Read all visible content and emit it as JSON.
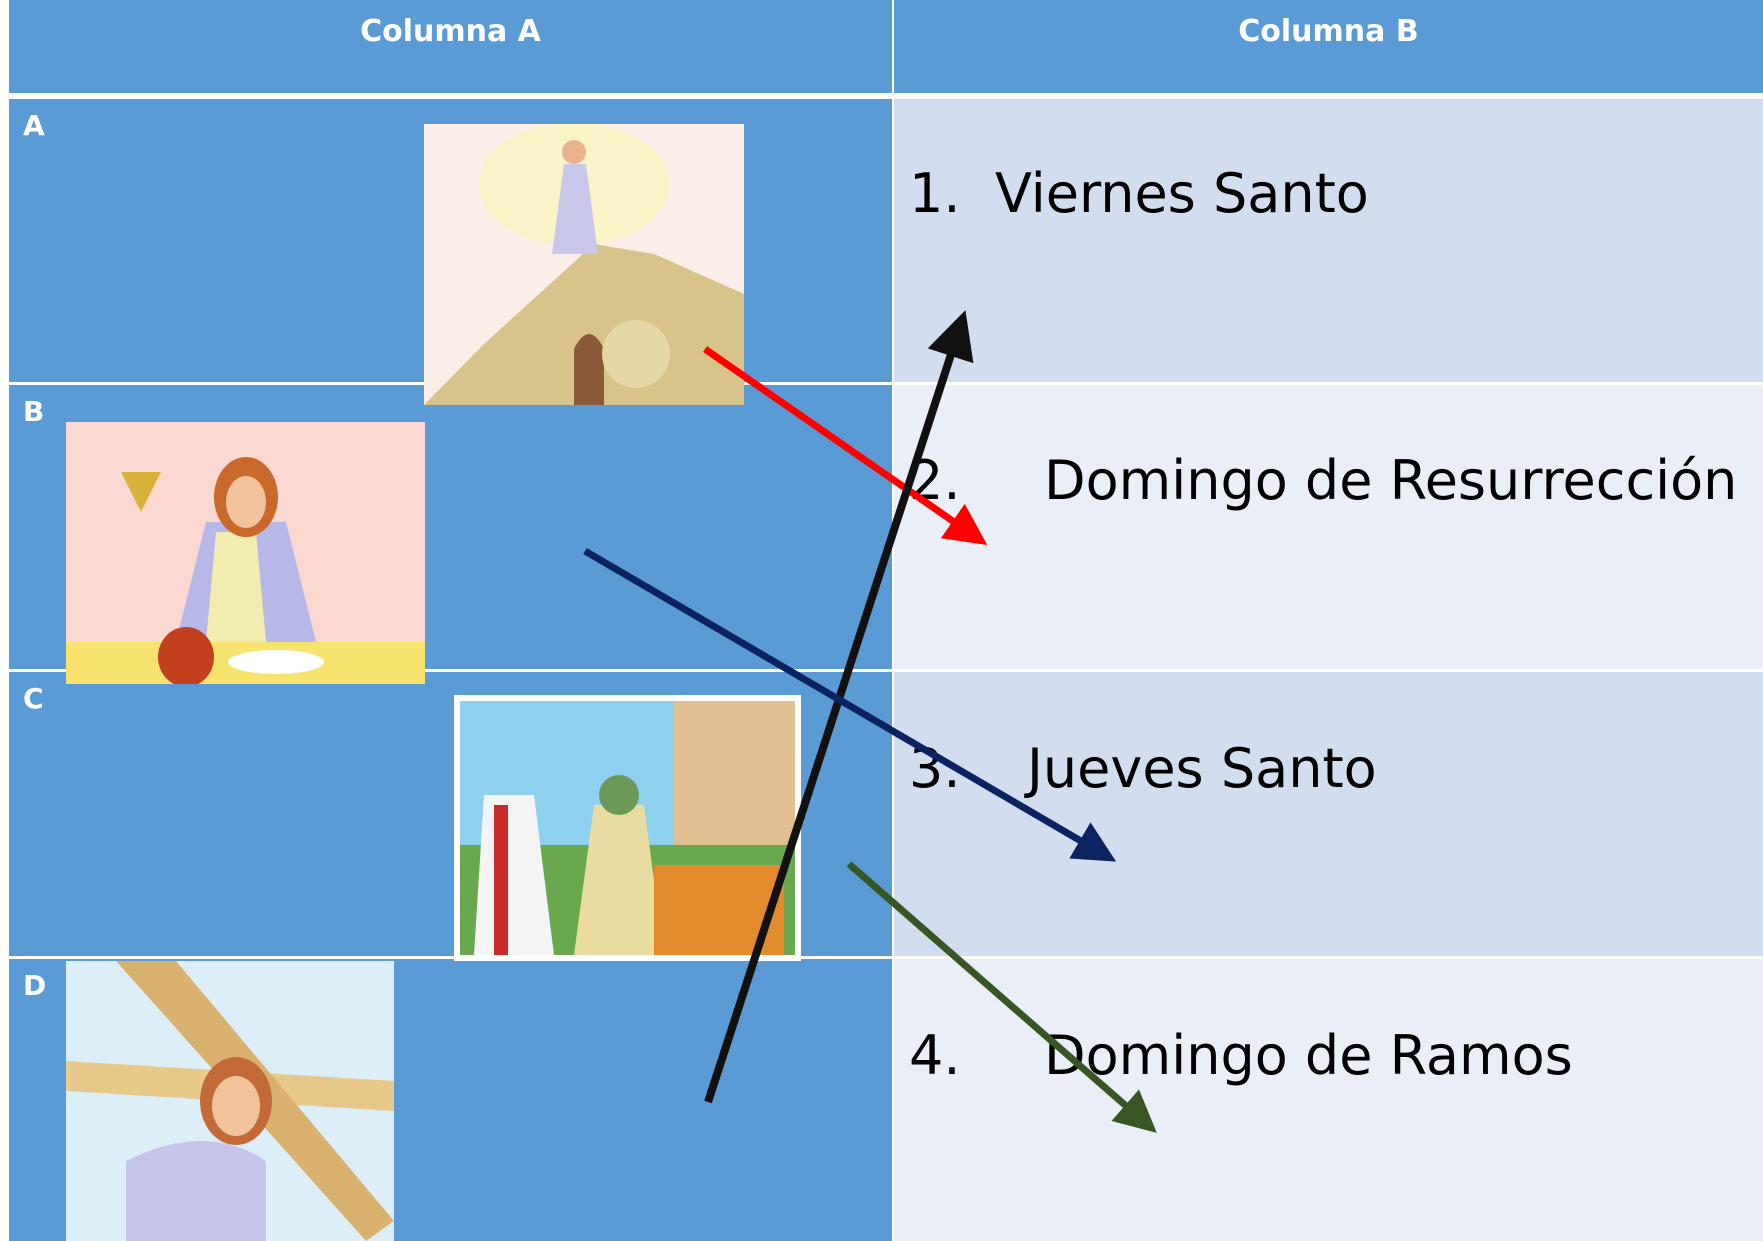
{
  "table": {
    "header": [
      "Columna A",
      "Columna B"
    ],
    "rows": [
      {
        "label": "A",
        "number": "1.",
        "text": "Viernes Santo"
      },
      {
        "label": "B",
        "number": "2.",
        "text": "Domingo de Resurrección"
      },
      {
        "label": "C",
        "number": "3.",
        "text": "Jueves Santo"
      },
      {
        "label": "D",
        "number": "4.",
        "text": "Domingo de Ramos"
      }
    ]
  }
}
